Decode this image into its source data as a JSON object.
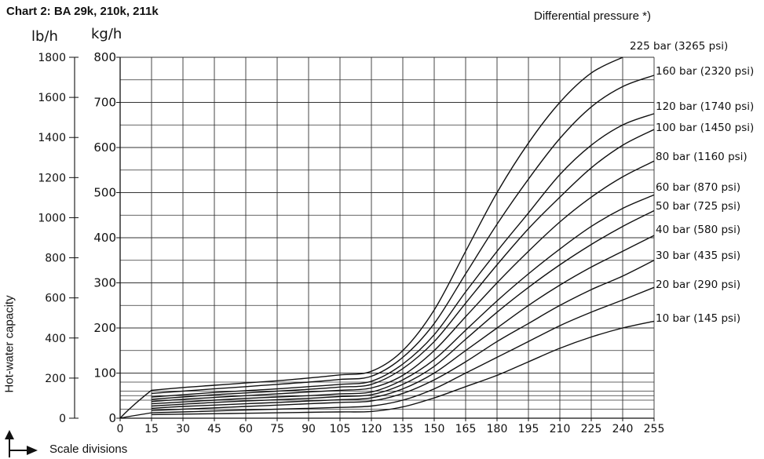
{
  "chart_data": {
    "type": "line",
    "title": "Chart 2: BA 29k, 210k, 211k",
    "legend_title": "Differential pressure *)",
    "xlabel": "Scale divisions",
    "ylabel": "Hot-water capacity",
    "y_unit_left": "lb/h",
    "y_unit_right": "kg/h",
    "xlim": [
      0,
      255
    ],
    "ylim_kg": [
      0,
      800
    ],
    "ylim_lb": [
      0,
      1800
    ],
    "x_ticks": [
      "0",
      "15",
      "30",
      "45",
      "60",
      "75",
      "90",
      "105",
      "120",
      "135",
      "150",
      "165",
      "180",
      "195",
      "210",
      "225",
      "240",
      "255"
    ],
    "y_ticks_kg": [
      "0",
      "100",
      "200",
      "300",
      "400",
      "500",
      "600",
      "700",
      "800"
    ],
    "y_ticks_lb": [
      "0",
      "200",
      "400",
      "600",
      "800",
      "1000",
      "1200",
      "1400",
      "1600",
      "1800"
    ],
    "grid": true,
    "x": [
      0,
      15,
      30,
      45,
      60,
      75,
      90,
      105,
      120,
      135,
      150,
      165,
      180,
      195,
      210,
      225,
      240,
      255
    ],
    "series": [
      {
        "name": "10 bar   (145 psi)",
        "values": [
          null,
          8,
          9,
          10,
          11,
          12,
          13,
          14,
          15,
          25,
          45,
          70,
          95,
          125,
          155,
          180,
          200,
          215
        ]
      },
      {
        "name": "20 bar   (290 psi)",
        "values": [
          null,
          12,
          14,
          16,
          18,
          20,
          22,
          24,
          27,
          40,
          65,
          100,
          135,
          170,
          205,
          235,
          262,
          290
        ]
      },
      {
        "name": "30 bar   (435 psi)",
        "values": [
          null,
          17,
          20,
          23,
          26,
          29,
          32,
          35,
          38,
          55,
          85,
          125,
          170,
          210,
          250,
          285,
          315,
          350
        ]
      },
      {
        "name": "40 bar   (580 psi)",
        "values": [
          null,
          22,
          26,
          29,
          32,
          35,
          38,
          41,
          45,
          65,
          100,
          150,
          200,
          250,
          295,
          335,
          370,
          405
        ]
      },
      {
        "name": "50 bar   (725 psi)",
        "values": [
          null,
          27,
          31,
          35,
          38,
          41,
          44,
          48,
          52,
          75,
          115,
          175,
          235,
          290,
          340,
          385,
          425,
          460
        ]
      },
      {
        "name": "60 bar   (870 psi)",
        "values": [
          null,
          32,
          36,
          40,
          44,
          47,
          50,
          54,
          58,
          85,
          130,
          195,
          260,
          320,
          375,
          425,
          465,
          495
        ]
      },
      {
        "name": "80 bar (1160 psi)",
        "values": [
          null,
          37,
          42,
          46,
          50,
          54,
          58,
          62,
          67,
          95,
          150,
          225,
          300,
          370,
          435,
          490,
          535,
          570
        ]
      },
      {
        "name": "100 bar (1450 psi)",
        "values": [
          null,
          42,
          47,
          52,
          56,
          60,
          64,
          69,
          75,
          110,
          170,
          255,
          340,
          420,
          490,
          555,
          605,
          640
        ]
      },
      {
        "name": "120 bar (1740 psi)",
        "values": [
          null,
          47,
          52,
          57,
          61,
          65,
          70,
          75,
          82,
          120,
          185,
          280,
          370,
          455,
          540,
          605,
          650,
          675
        ]
      },
      {
        "name": "160 bar (2320 psi)",
        "values": [
          null,
          55,
          60,
          65,
          70,
          75,
          80,
          86,
          93,
          135,
          210,
          320,
          430,
          530,
          620,
          690,
          735,
          760
        ]
      },
      {
        "name": "225 bar (3265 psi)",
        "values": [
          null,
          62,
          68,
          73,
          78,
          83,
          89,
          96,
          104,
          150,
          240,
          370,
          500,
          610,
          700,
          765,
          800,
          null
        ]
      }
    ]
  }
}
